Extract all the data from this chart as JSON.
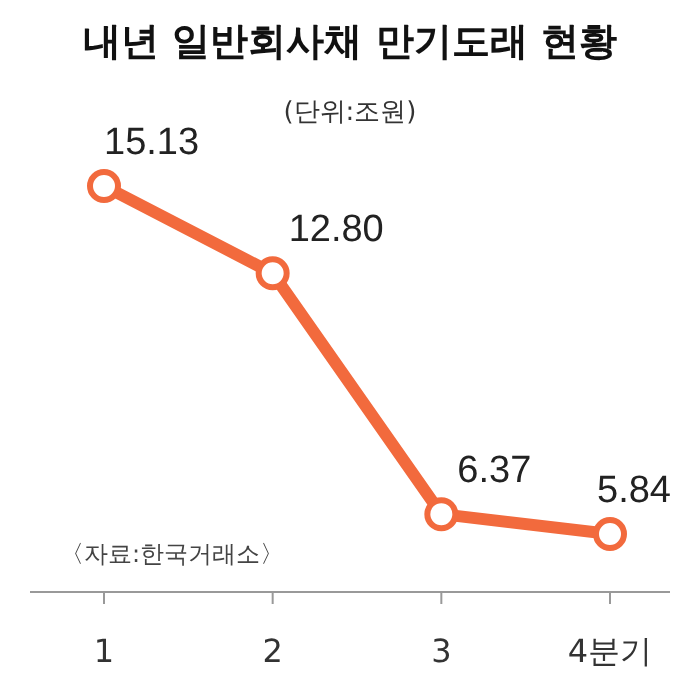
{
  "chart_data": {
    "type": "line",
    "title": "내년 일반회사채 만기도래 현황",
    "subtitle": "(단위:조원)",
    "categories": [
      "1",
      "2",
      "3",
      "4분기"
    ],
    "series": [
      {
        "color": "#f26a3d",
        "values": [
          15.13,
          12.8,
          6.37,
          5.84
        ],
        "value_labels": [
          "15.13",
          "12.80",
          "6.37",
          "5.84"
        ]
      }
    ],
    "marker": "circle",
    "line_style": "solid",
    "grid": false,
    "tick_labels": "x",
    "annotations": [
      "〈자료:한국거래소〉"
    ]
  }
}
